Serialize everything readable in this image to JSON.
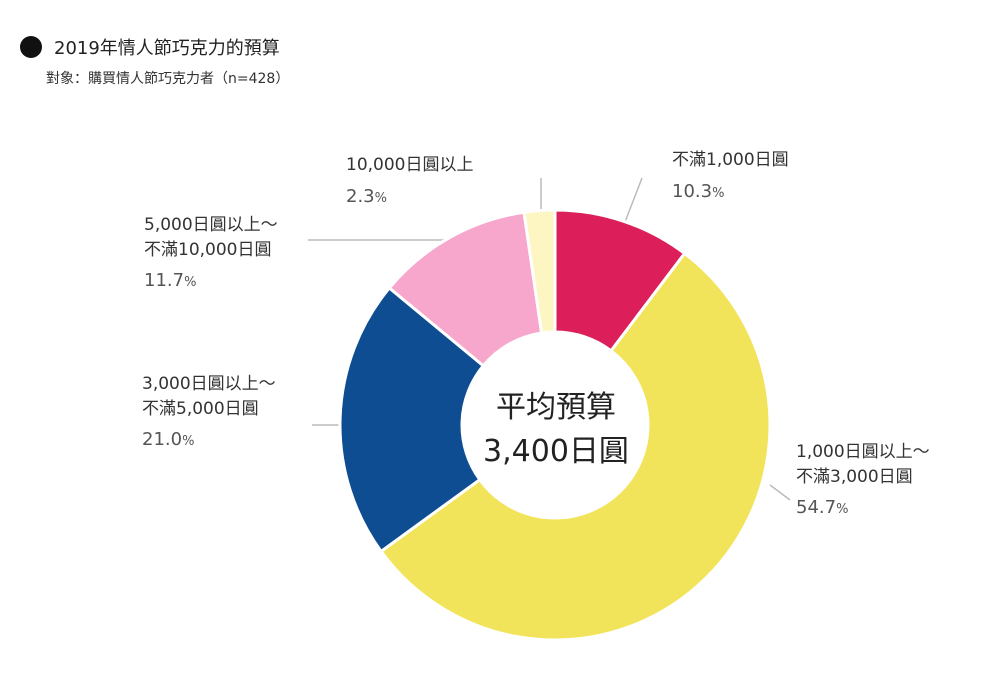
{
  "header": {
    "title": "2019年情人節巧克力的預算",
    "subtitle": "對象：購買情人節巧克力者（n=428）"
  },
  "center": {
    "line1": "平均預算",
    "line2": "3,400日圓"
  },
  "chart_data": {
    "type": "pie",
    "title": "2019年情人節巧克力的預算",
    "subtitle": "對象：購買情人節巧克力者（n=428）",
    "unit": "%",
    "slices": [
      {
        "label": "不滿1,000日圓",
        "value": 10.3,
        "color": "#DC1F5A"
      },
      {
        "label": "1,000日圓以上～不滿3,000日圓",
        "value": 54.7,
        "color": "#F2E45A"
      },
      {
        "label": "3,000日圓以上～不滿5,000日圓",
        "value": 21.0,
        "color": "#0F4D92"
      },
      {
        "label": "5,000日圓以上～不滿10,000日圓",
        "value": 11.7,
        "color": "#F7A6CC"
      },
      {
        "label": "10,000日圓以上",
        "value": 2.3,
        "color": "#FDF6C2"
      }
    ],
    "labels": [
      {
        "line1": "不滿1,000日圓",
        "line2": "",
        "pct": "10.3"
      },
      {
        "line1": "1,000日圓以上～",
        "line2": "不滿3,000日圓",
        "pct": "54.7"
      },
      {
        "line1": "3,000日圓以上～",
        "line2": "不滿5,000日圓",
        "pct": "21.0"
      },
      {
        "line1": "5,000日圓以上～",
        "line2": "不滿10,000日圓",
        "pct": "11.7"
      },
      {
        "line1": "10,000日圓以上",
        "line2": "",
        "pct": "2.3"
      }
    ],
    "percent_sign": "%"
  }
}
